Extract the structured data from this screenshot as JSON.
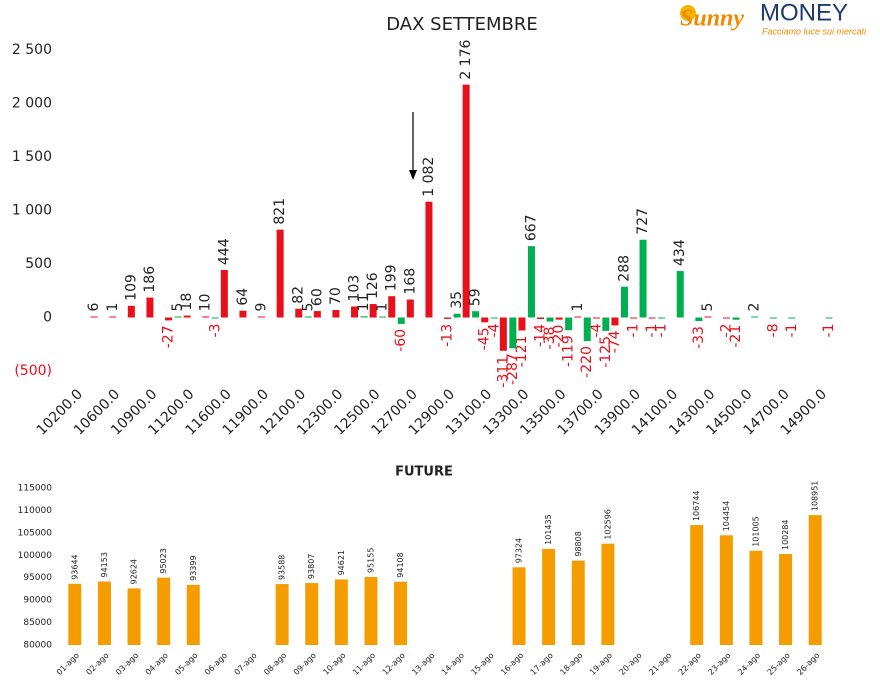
{
  "logo": {
    "brand": "Sunny",
    "name": "MONEY",
    "tagline": "Facciamo luce sui mercati"
  },
  "chart_data": [
    {
      "type": "bar",
      "title": "DAX SETTEMBRE",
      "categories": [
        "10200.0",
        null,
        "10600.0",
        null,
        "10900.0",
        null,
        "11200.0",
        null,
        "11600.0",
        null,
        "11900.0",
        null,
        "12100.0",
        null,
        "12300.0",
        null,
        "12500.0",
        null,
        "12700.0",
        null,
        "12900.0",
        null,
        "13100.0",
        null,
        "13300.0",
        null,
        "13500.0",
        null,
        "13700.0",
        null,
        "13900.0",
        null,
        "14100.0",
        null,
        "14300.0",
        null,
        "14500.0",
        null,
        "14700.0",
        null,
        "14900.0"
      ],
      "series": [
        {
          "color": "#e8101a",
          "values": [
            null,
            6,
            1,
            109,
            186,
            -27,
            18,
            10,
            444,
            64,
            9,
            821,
            82,
            60,
            70,
            103,
            126,
            199,
            168,
            1082,
            -13,
            2176,
            -45,
            -311,
            -121,
            -14,
            -20,
            1,
            -4,
            -74,
            -1,
            -1,
            null,
            null,
            5,
            -2,
            null,
            null,
            null,
            null,
            null
          ],
          "value_labels": [
            null,
            "6",
            "1",
            "109",
            "186",
            "-27",
            "18",
            "10",
            "444",
            "64",
            "9",
            "821",
            "82",
            "60",
            "70",
            "103",
            "126",
            "199",
            "168",
            "1 082",
            "-13",
            "2 176",
            "-45",
            "-311",
            "-121",
            "-14",
            "-20",
            "1",
            "-4",
            "-74",
            "-1",
            "-1",
            null,
            null,
            "5",
            "-2",
            null,
            null,
            null,
            null,
            null
          ]
        },
        {
          "color": "#00b050",
          "values": [
            null,
            null,
            null,
            null,
            null,
            5,
            null,
            -3,
            null,
            null,
            null,
            null,
            5,
            null,
            null,
            11,
            1,
            -60,
            null,
            null,
            35,
            59,
            -4,
            -287,
            667,
            -38,
            -119,
            -220,
            -125,
            288,
            727,
            -1,
            434,
            -33,
            null,
            -21,
            2,
            -8,
            -1,
            null,
            -1
          ]
        }
      ],
      "negative_label_color": "#e8101a",
      "ylim": [
        -500,
        2500
      ],
      "yticks": [
        {
          "value": -500,
          "label": "(500)"
        },
        0,
        500,
        {
          "value": 1000,
          "label": "1 000"
        },
        {
          "value": 1500,
          "label": "1 500"
        },
        {
          "value": 2000,
          "label": "2 000"
        },
        {
          "value": 2500,
          "label": "2 500"
        }
      ],
      "grid": false
    },
    {
      "type": "bar",
      "title": "FUTURE",
      "categories": [
        "01-ago",
        "02-ago",
        "03-ago",
        "04-ago",
        "05-ago",
        "06-ago",
        "07-ago",
        "08-ago",
        "09-ago",
        "10-ago",
        "11-ago",
        "12-ago",
        "13-ago",
        "14-ago",
        "15-ago",
        "16-ago",
        "17-ago",
        "18-ago",
        "19-ago",
        "20-ago",
        "21-ago",
        "22-ago",
        "23-ago",
        "24-ago",
        "25-ago",
        "26-ago"
      ],
      "values": [
        93644,
        94153,
        92624,
        95023,
        93399,
        null,
        null,
        93588,
        93807,
        94621,
        95155,
        94108,
        null,
        null,
        null,
        97324,
        101435,
        98808,
        102596,
        null,
        null,
        106744,
        104454,
        101005,
        100284,
        108951
      ],
      "color": "#f59c00",
      "ylim": [
        80000,
        115000
      ],
      "yticks": [
        80000,
        85000,
        90000,
        95000,
        100000,
        105000,
        110000,
        115000
      ],
      "grid": false
    }
  ]
}
